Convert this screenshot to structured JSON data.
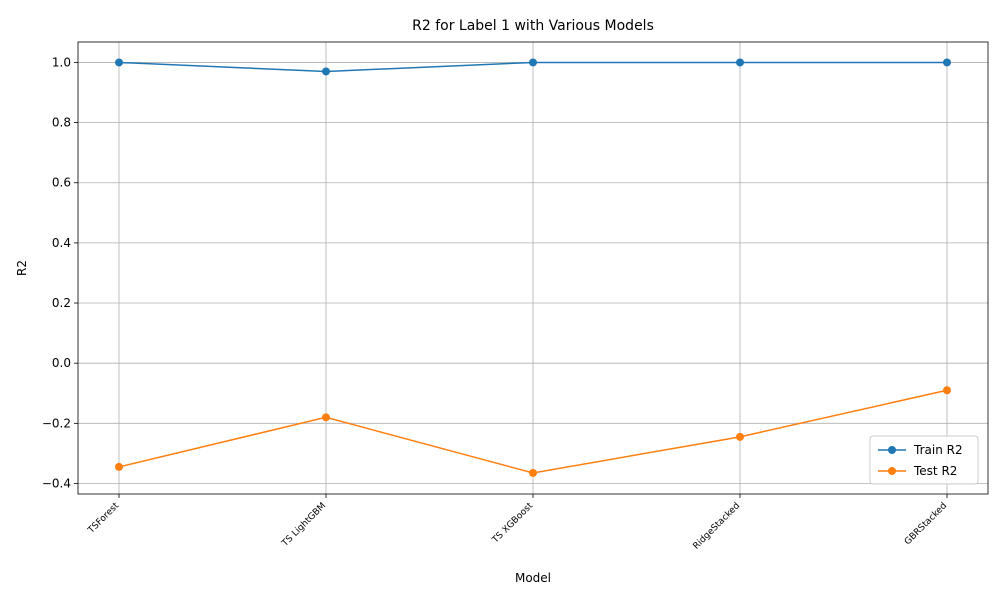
{
  "chart_data": {
    "type": "line",
    "title": "R2 for Label 1 with Various Models",
    "xlabel": "Model",
    "ylabel": "R2",
    "categories": [
      "TSForest",
      "TS LightGBM",
      "TS XGBoost",
      "RidgeStacked",
      "GBRStacked"
    ],
    "series": [
      {
        "name": "Train R2",
        "values": [
          1.0,
          0.97,
          1.0,
          1.0,
          1.0
        ],
        "color": "#1f77b4"
      },
      {
        "name": "Test R2",
        "values": [
          -0.345,
          -0.18,
          -0.365,
          -0.245,
          -0.09
        ],
        "color": "#ff7f0e"
      }
    ],
    "ylim": [
      -0.435,
      1.068
    ],
    "yticks": [
      "−0.4",
      "−0.2",
      "0.0",
      "0.2",
      "0.4",
      "0.6",
      "0.8",
      "1.0"
    ],
    "grid": true,
    "legend_position": "lower right"
  }
}
